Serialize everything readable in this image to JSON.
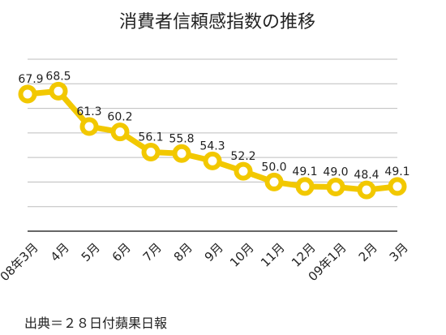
{
  "chart_data": {
    "type": "line",
    "title": "消費者信頼感指数の推移",
    "categories": [
      "08年3月",
      "4月",
      "5月",
      "6月",
      "7月",
      "8月",
      "9月",
      "10月",
      "11月",
      "12月",
      "09年1月",
      "2月",
      "3月"
    ],
    "values": [
      67.9,
      68.5,
      61.3,
      60.2,
      56.1,
      55.8,
      54.3,
      52.2,
      50.0,
      49.1,
      49.0,
      48.4,
      49.1
    ],
    "data_labels": [
      "67.9",
      "68.5",
      "61.3",
      "60.2",
      "56.1",
      "55.8",
      "54.3",
      "52.2",
      "50.0",
      "49.1",
      "49.0",
      "48.4",
      "49.1"
    ],
    "ylim": [
      40,
      75
    ],
    "grid": true,
    "line_color": "#f2c800",
    "grid_color": "#bdbdbd",
    "axis_color": "#333333"
  },
  "source": "出典＝２８日付蘋果日報"
}
